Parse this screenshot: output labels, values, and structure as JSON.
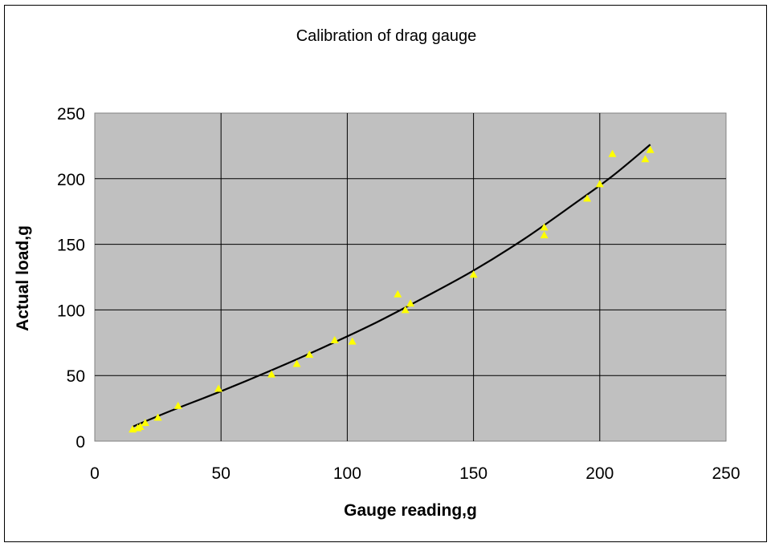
{
  "chart_data": {
    "type": "scatter",
    "title": "Calibration of drag gauge",
    "xlabel": "Gauge reading,g",
    "ylabel": "Actual load,g",
    "xlim": [
      0,
      250
    ],
    "ylim": [
      0,
      250
    ],
    "x_ticks": [
      "0",
      "50",
      "100",
      "150",
      "200",
      "250"
    ],
    "y_ticks": [
      "0",
      "50",
      "100",
      "150",
      "200",
      "250"
    ],
    "grid": true,
    "legend": "none",
    "plot_background": "#c0c0c0",
    "marker_color": "#ffff00",
    "trendline_color": "#000000",
    "series": [
      {
        "marker": "triangle",
        "x": [
          15,
          17,
          18,
          20,
          25,
          33,
          49,
          70,
          80,
          85,
          95,
          102,
          120,
          123,
          125,
          150,
          178,
          178,
          195,
          200,
          205,
          218,
          220
        ],
        "y": [
          9,
          10,
          11,
          14,
          18,
          27,
          40,
          51,
          59,
          66,
          77,
          76,
          112,
          100,
          105,
          127,
          163,
          157,
          185,
          196,
          219,
          215,
          222
        ]
      }
    ],
    "trendline": {
      "type": "curve",
      "x": [
        15,
        30,
        50,
        70,
        90,
        110,
        130,
        150,
        170,
        190,
        205,
        220
      ],
      "y": [
        11,
        23,
        38,
        54,
        71,
        89,
        109,
        130,
        154,
        181,
        202,
        226
      ]
    }
  }
}
